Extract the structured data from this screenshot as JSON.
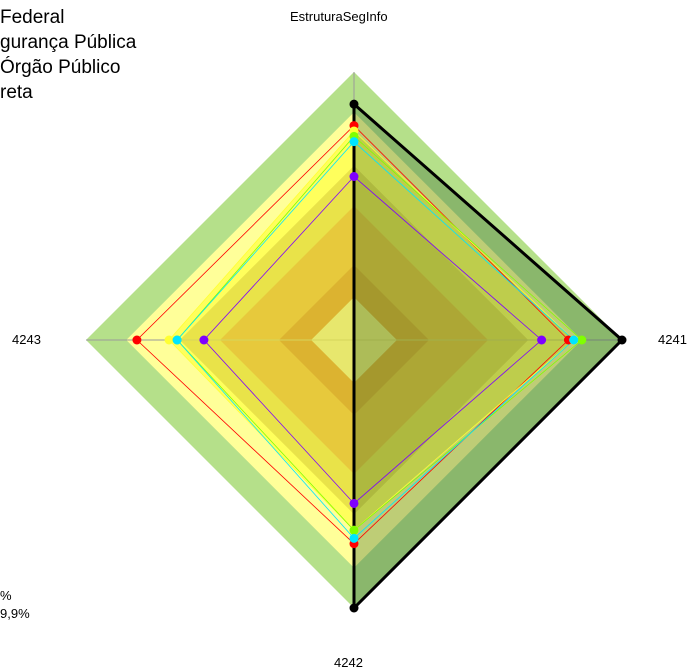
{
  "legend_lines": [
    "Federal",
    "gurança Pública",
    "Órgão Público",
    "reta"
  ],
  "bottom_left_lines": [
    "%",
    "9,9%"
  ],
  "colors": {
    "band_outer": "#b5e08a",
    "band_inner_yellow": "#ffff99",
    "band_mid": "#c7b86a",
    "band_orange": "#c3784a",
    "band_red": "#a8412c",
    "center": "#c4c4c4",
    "axis": "#9a9a9a"
  },
  "chart_data": {
    "type": "radar",
    "axes": [
      "EstruturaSegInfo",
      "4241",
      "4242",
      "4243"
    ],
    "rlim": [
      0,
      1
    ],
    "bands": [
      {
        "r": 1.0,
        "color": "#b5e08a"
      },
      {
        "r": 0.85,
        "color": "#ffff99"
      },
      {
        "r": 0.65,
        "color": "#c7b86a"
      },
      {
        "r": 0.5,
        "color": "#c3784a"
      },
      {
        "r": 0.28,
        "color": "#a8412c"
      },
      {
        "r": 0.16,
        "color": "#c4c4c4"
      }
    ],
    "series": [
      {
        "color": "#ff0000",
        "values": [
          0.8,
          0.8,
          0.76,
          0.81
        ],
        "width": 0.8,
        "fill": false
      },
      {
        "color": "#ffff33",
        "values": [
          0.78,
          0.82,
          0.71,
          0.69
        ],
        "width": 0.8,
        "fill": true
      },
      {
        "color": "#80ff00",
        "values": [
          0.76,
          0.85,
          0.71,
          0.66
        ],
        "width": 0.8,
        "fill": false
      },
      {
        "color": "#00e5ff",
        "values": [
          0.74,
          0.82,
          0.74,
          0.66
        ],
        "width": 0.8,
        "fill": false
      },
      {
        "color": "#7f00ff",
        "values": [
          0.61,
          0.7,
          0.61,
          0.56
        ],
        "width": 0.8,
        "fill": false
      },
      {
        "color": "#000000",
        "values": [
          0.88,
          1.0,
          1.0,
          0.0
        ],
        "width": 3,
        "fill": true,
        "fillColor": "rgba(40,90,40,0.30)"
      }
    ]
  }
}
